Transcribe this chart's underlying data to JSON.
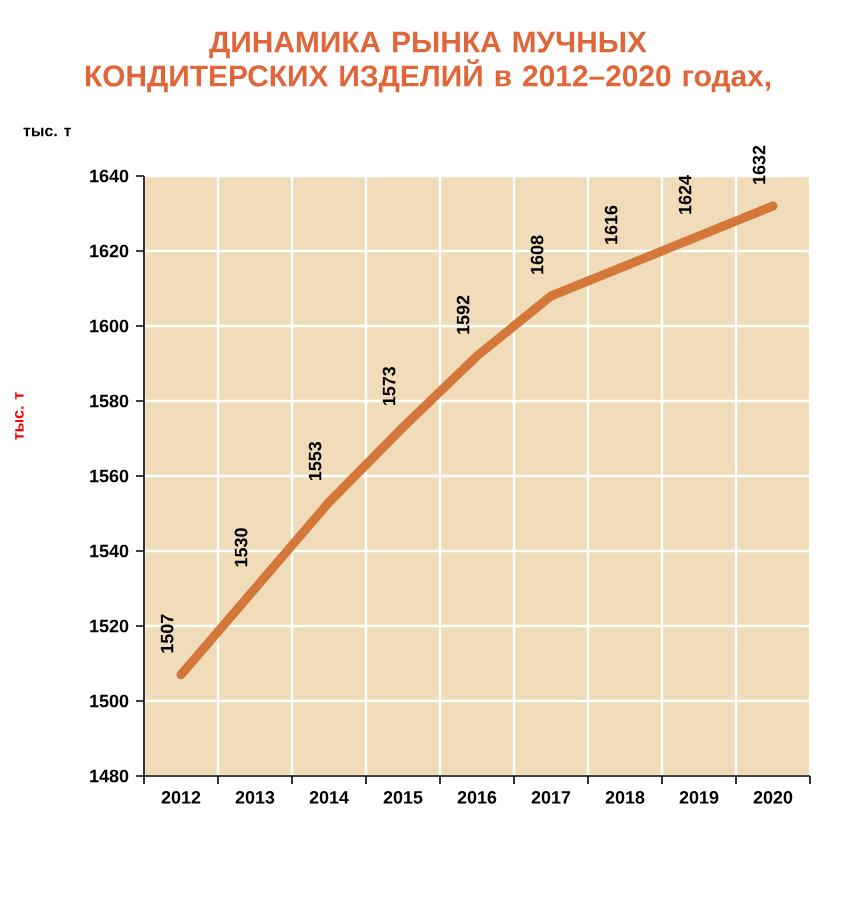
{
  "chart_data": {
    "type": "line",
    "title": "ДИНАМИКА РЫНКА МУЧНЫХ КОНДИТЕРСКИХ ИЗДЕЛИЙ в 2012–2020 годах,",
    "subtitle": "тыс. т",
    "ylabel": "тыс. т",
    "categories": [
      "2012",
      "2013",
      "2014",
      "2015",
      "2016",
      "2017",
      "2018",
      "2019",
      "2020"
    ],
    "values": [
      1507,
      1530,
      1553,
      1573,
      1592,
      1608,
      1616,
      1624,
      1632
    ],
    "color": "#d4773a",
    "ylim": [
      1480,
      1640
    ],
    "yticks": [
      1480,
      1500,
      1520,
      1540,
      1560,
      1580,
      1600,
      1620,
      1640
    ],
    "grid": true,
    "data_labels": true,
    "marker": "none",
    "line_style": "solid"
  }
}
